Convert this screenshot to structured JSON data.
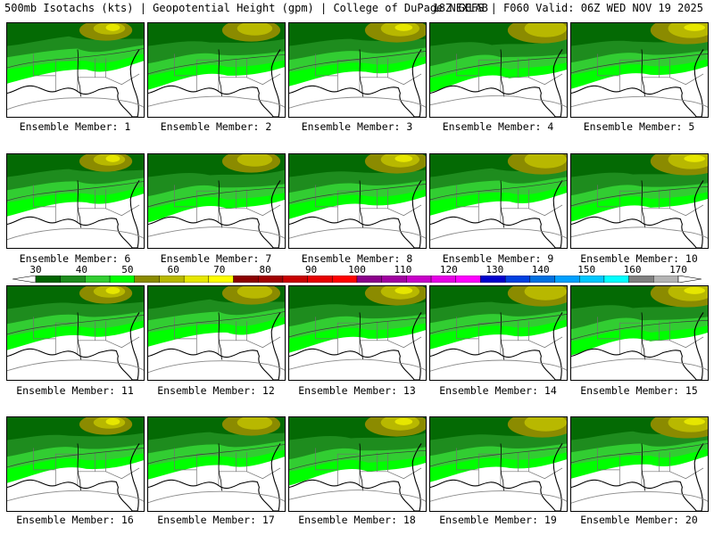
{
  "header": {
    "left": "500mb Isotachs (kts) | Geopotential Height (gpm) | College of DuPage NEXLAB",
    "right": "18Z GEFS | F060 Valid: 06Z WED NOV 19 2025"
  },
  "members": [
    "Ensemble Member: 1",
    "Ensemble Member: 2",
    "Ensemble Member: 3",
    "Ensemble Member: 4",
    "Ensemble Member: 5",
    "Ensemble Member: 6",
    "Ensemble Member: 7",
    "Ensemble Member: 8",
    "Ensemble Member: 9",
    "Ensemble Member: 10",
    "Ensemble Member: 11",
    "Ensemble Member: 12",
    "Ensemble Member: 13",
    "Ensemble Member: 14",
    "Ensemble Member: 15",
    "Ensemble Member: 16",
    "Ensemble Member: 17",
    "Ensemble Member: 18",
    "Ensemble Member: 19",
    "Ensemble Member: 20"
  ],
  "colorbar": {
    "ticks": [
      "30",
      "40",
      "50",
      "60",
      "70",
      "80",
      "90",
      "100",
      "110",
      "120",
      "130",
      "140",
      "150",
      "160",
      "170"
    ],
    "colors": [
      "#006400",
      "#1e8c1e",
      "#32cd32",
      "#00ff00",
      "#8b8b00",
      "#b8b800",
      "#e6e600",
      "#ffff00",
      "#8b0000",
      "#a00000",
      "#c80000",
      "#e60000",
      "#ff0000",
      "#8b008b",
      "#a000a0",
      "#c800c8",
      "#e600e6",
      "#ff00ff",
      "#0000cd",
      "#0040e0",
      "#0070e0",
      "#00a0ff",
      "#00c8ff",
      "#00ffff",
      "#808080",
      "#b4b4b4"
    ]
  }
}
